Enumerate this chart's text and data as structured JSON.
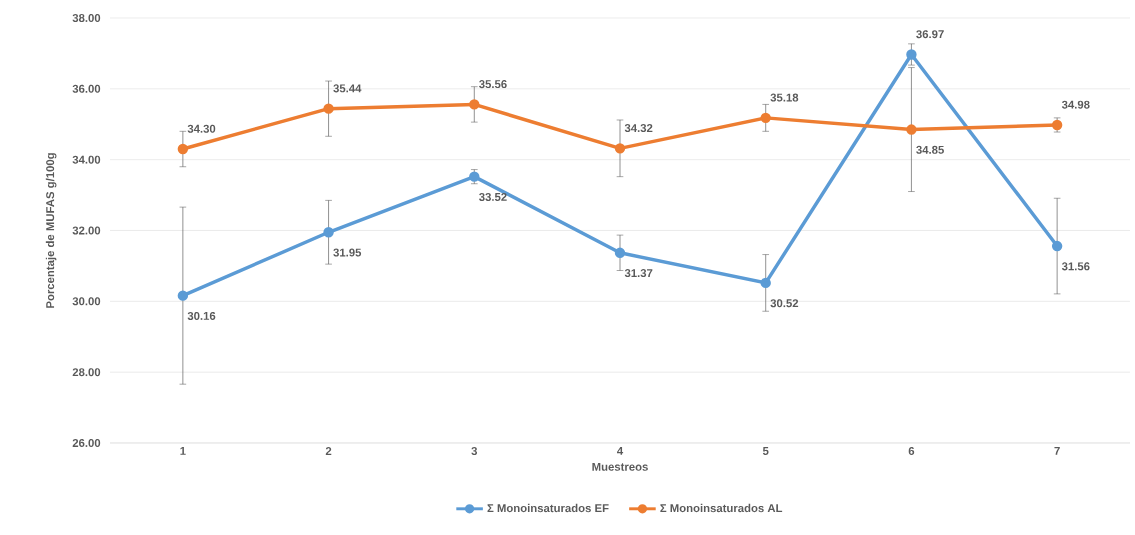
{
  "chart_data": {
    "type": "line",
    "xlabel": "Muestreos",
    "ylabel": "Porcentaje de MUFAS  g/100g",
    "categories": [
      "1",
      "2",
      "3",
      "4",
      "5",
      "6",
      "7"
    ],
    "series": [
      {
        "name": "Σ Monoinsaturados EF",
        "color": "#5b9bd5",
        "values": [
          30.16,
          31.95,
          33.52,
          31.37,
          30.52,
          36.97,
          31.56
        ],
        "errors": [
          2.5,
          0.9,
          0.2,
          0.5,
          0.8,
          0.3,
          1.35
        ],
        "value_labels": [
          "30.16",
          "31.95",
          "33.52",
          "31.37",
          "30.52",
          "36.97",
          "31.56"
        ]
      },
      {
        "name": "Σ Monoinsaturados AL",
        "color": "#ed7d31",
        "values": [
          34.3,
          35.44,
          35.56,
          34.32,
          35.18,
          34.85,
          34.98
        ],
        "errors": [
          0.5,
          0.78,
          0.5,
          0.8,
          0.38,
          1.75,
          0.2
        ],
        "value_labels": [
          "34.30",
          "35.44",
          "35.56",
          "34.32",
          "35.18",
          "34.85",
          "34.98"
        ]
      }
    ],
    "ylim": [
      26,
      38
    ],
    "yticks": [
      {
        "value": 26,
        "label": "26.00"
      },
      {
        "value": 28,
        "label": "28.00"
      },
      {
        "value": 30,
        "label": "30.00"
      },
      {
        "value": 32,
        "label": "32.00"
      },
      {
        "value": 34,
        "label": "34.00"
      },
      {
        "value": 36,
        "label": "36.00"
      },
      {
        "value": 38,
        "label": "38.00"
      }
    ],
    "grid": "y",
    "legend": "bottom",
    "marker": "circle",
    "line_style": "solid"
  }
}
